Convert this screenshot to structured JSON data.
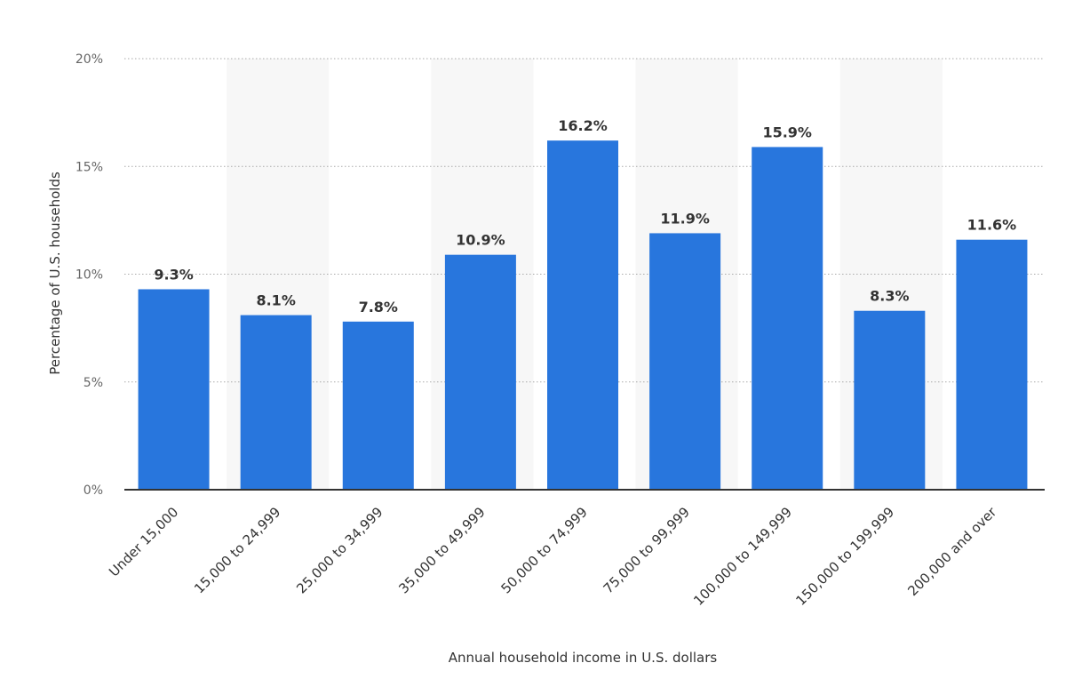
{
  "chart_data": {
    "type": "bar",
    "title": "",
    "xlabel": "Annual household income in U.S. dollars",
    "ylabel": "Percentage of U.S. households",
    "categories": [
      "Under 15,000",
      "15,000 to 24,999",
      "25,000 to 34,999",
      "35,000 to 49,999",
      "50,000 to 74,999",
      "75,000 to 99,999",
      "100,000 to 149,999",
      "150,000 to 199,999",
      "200,000 and over"
    ],
    "values": [
      9.3,
      8.1,
      7.8,
      10.9,
      16.2,
      11.9,
      15.9,
      8.3,
      11.6
    ],
    "data_labels": [
      "9.3%",
      "8.1%",
      "7.8%",
      "10.9%",
      "16.2%",
      "11.9%",
      "15.9%",
      "8.3%",
      "11.6%"
    ],
    "y_ticks": [
      0,
      5,
      10,
      15,
      20
    ],
    "y_tick_labels": [
      "0%",
      "5%",
      "10%",
      "15%",
      "20%"
    ],
    "ylim": [
      0,
      20
    ],
    "grid": true,
    "legend": "none",
    "colors": {
      "bar": "#2876dd",
      "band": "#f7f7f7",
      "grid": "#aaaaaa",
      "axis": "#333333"
    }
  }
}
